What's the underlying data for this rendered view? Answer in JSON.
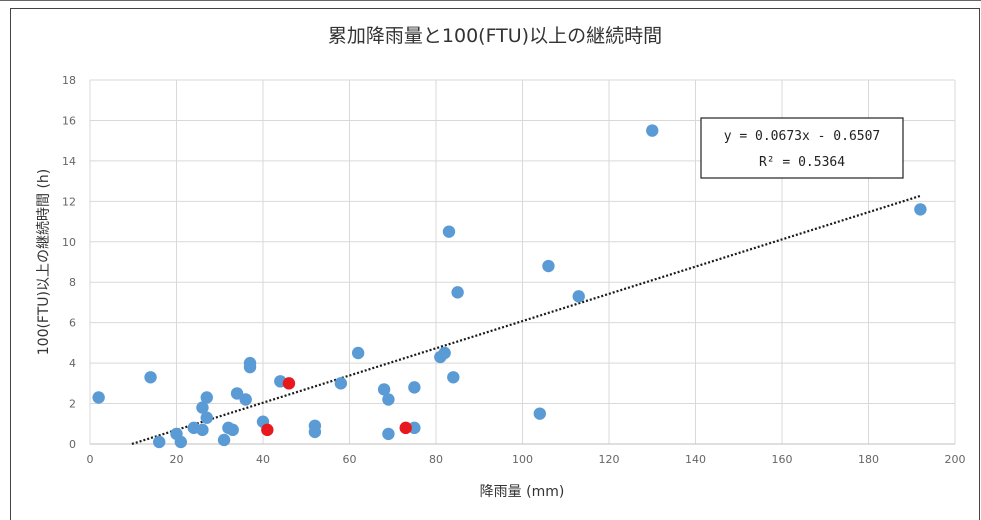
{
  "chart_data": {
    "type": "scatter",
    "title": "累加降雨量と100(FTU)以上の継続時間",
    "xlabel": "降雨量 (mm)",
    "ylabel": "100(FTU)以上の継続時間 (h)",
    "xlim": [
      0,
      200
    ],
    "ylim": [
      0,
      18
    ],
    "xticks": [
      0,
      20,
      40,
      60,
      80,
      100,
      120,
      140,
      160,
      180,
      200
    ],
    "yticks": [
      0,
      2,
      4,
      6,
      8,
      10,
      12,
      14,
      16,
      18
    ],
    "grid": true,
    "colors": {
      "main": "#5b9bd5",
      "highlight": "#e8191e",
      "trend": "#1a1a1a"
    },
    "series": [
      {
        "color": "#5b9bd5",
        "points": [
          [
            2,
            2.3
          ],
          [
            14,
            3.3
          ],
          [
            16,
            0.1
          ],
          [
            20,
            0.5
          ],
          [
            21,
            0.1
          ],
          [
            24,
            0.8
          ],
          [
            26,
            0.7
          ],
          [
            26,
            1.8
          ],
          [
            27,
            2.3
          ],
          [
            27,
            1.3
          ],
          [
            31,
            0.2
          ],
          [
            32,
            0.8
          ],
          [
            33,
            0.7
          ],
          [
            34,
            2.5
          ],
          [
            36,
            2.2
          ],
          [
            37,
            3.8
          ],
          [
            37,
            4.0
          ],
          [
            40,
            1.1
          ],
          [
            44,
            3.1
          ],
          [
            52,
            0.6
          ],
          [
            52,
            0.9
          ],
          [
            58,
            3.0
          ],
          [
            62,
            4.5
          ],
          [
            68,
            2.7
          ],
          [
            69,
            0.5
          ],
          [
            69,
            2.2
          ],
          [
            75,
            2.8
          ],
          [
            75,
            0.8
          ],
          [
            81,
            4.3
          ],
          [
            82,
            4.5
          ],
          [
            83,
            10.5
          ],
          [
            84,
            3.3
          ],
          [
            85,
            7.5
          ],
          [
            104,
            1.5
          ],
          [
            106,
            8.8
          ],
          [
            113,
            7.3
          ],
          [
            130,
            15.5
          ],
          [
            192,
            11.6
          ]
        ]
      },
      {
        "color": "#e8191e",
        "points": [
          [
            41,
            0.7
          ],
          [
            46,
            3.0
          ],
          [
            73,
            0.8
          ]
        ]
      }
    ],
    "trendline": {
      "equation": "y = 0.0673x - 0.6507",
      "r2": "R² = 0.5364",
      "slope": 0.0673,
      "intercept": -0.6507,
      "x_range": [
        9.7,
        192
      ]
    }
  }
}
